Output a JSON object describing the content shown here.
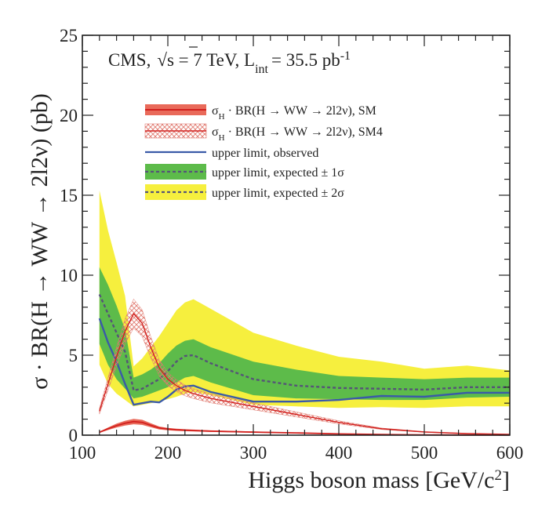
{
  "chart_data": {
    "type": "line",
    "title": "",
    "annotation": "CMS, √s = 7 TeV, L_int = 35.5 pb⁻¹",
    "annotation_parts": {
      "experiment": "CMS,",
      "sqrt": "√",
      "energy": "s = 7 TeV, L",
      "lumi_sub": "int",
      "lumi_val": "= 35.5 pb",
      "lumi_sup": "-1"
    },
    "xlabel": "Higgs boson mass [GeV/c²]",
    "xlabel_parts": {
      "main": "Higgs boson mass [GeV/c",
      "sup": "2",
      "close": "]"
    },
    "ylabel": "σ · BR(H → WW → 2l2ν) (pb)",
    "xlim": [
      100,
      600
    ],
    "ylim": [
      0,
      25
    ],
    "x_ticks": [
      100,
      200,
      300,
      400,
      500,
      600
    ],
    "y_ticks": [
      0,
      5,
      10,
      15,
      20,
      25
    ],
    "legend": [
      {
        "key": "sm",
        "label": "σ_H · BR(H → WW → 2l2ν), SM",
        "parts": {
          "a": "σ",
          "sub": "H",
          "b": " · BR(H → WW → 2l2ν), SM"
        }
      },
      {
        "key": "sm4",
        "label": "σ_H · BR(H → WW → 2l2ν), SM4",
        "parts": {
          "a": "σ",
          "sub": "H",
          "b": " · BR(H → WW → 2l2ν), SM4"
        }
      },
      {
        "key": "obs",
        "label": "upper limit, observed"
      },
      {
        "key": "exp1",
        "label": "upper limit, expected ± 1σ"
      },
      {
        "key": "exp2",
        "label": "upper limit, expected ± 2σ"
      }
    ],
    "colors": {
      "sm": "#d2201e",
      "sm_band": "#e96a5a",
      "sm4": "#d2201e",
      "sm4_hatch": "#e07a70",
      "observed": "#3a5aa8",
      "expected": "#555577",
      "band1": "#5dbb4a",
      "band2": "#f6ef3e"
    },
    "mass": [
      120,
      130,
      140,
      150,
      160,
      170,
      180,
      190,
      200,
      210,
      220,
      230,
      250,
      300,
      350,
      400,
      450,
      500,
      550,
      600
    ],
    "series": [
      {
        "name": "upper limit, observed",
        "values": [
          7.3,
          5.8,
          4.6,
          3.2,
          1.9,
          2.0,
          2.1,
          2.05,
          2.4,
          2.85,
          3.05,
          3.1,
          2.7,
          2.1,
          2.1,
          2.2,
          2.45,
          2.4,
          2.65,
          2.65
        ]
      },
      {
        "name": "upper limit, expected (median)",
        "values": [
          8.8,
          7.6,
          6.4,
          5.2,
          2.8,
          2.9,
          3.2,
          3.5,
          4.0,
          4.6,
          4.95,
          5.0,
          4.5,
          3.5,
          3.1,
          2.95,
          2.9,
          2.85,
          3.0,
          3.0
        ]
      },
      {
        "name": "expected -1σ",
        "values": [
          5.7,
          4.4,
          3.5,
          2.9,
          2.3,
          2.4,
          2.6,
          2.8,
          3.0,
          3.3,
          3.6,
          3.7,
          3.3,
          2.5,
          2.3,
          2.25,
          2.2,
          2.2,
          2.35,
          2.4
        ]
      },
      {
        "name": "expected +1σ",
        "values": [
          10.5,
          9.4,
          8.1,
          6.6,
          3.6,
          3.8,
          4.1,
          4.5,
          5.1,
          5.6,
          5.9,
          6.0,
          5.5,
          4.6,
          4.1,
          3.7,
          3.6,
          3.5,
          3.6,
          3.6
        ]
      },
      {
        "name": "expected -2σ",
        "values": [
          4.4,
          3.2,
          2.6,
          2.2,
          1.8,
          1.9,
          2.0,
          2.1,
          2.25,
          2.4,
          2.6,
          2.7,
          2.5,
          1.9,
          1.8,
          1.7,
          1.75,
          1.7,
          1.8,
          1.8
        ]
      },
      {
        "name": "expected +2σ",
        "values": [
          15.3,
          12.8,
          10.8,
          8.7,
          4.3,
          4.8,
          5.5,
          6.2,
          7.0,
          7.8,
          8.3,
          8.5,
          7.9,
          6.4,
          5.6,
          4.9,
          4.6,
          4.15,
          4.35,
          4.05
        ]
      },
      {
        "name": "σ_H · BR, SM",
        "values": [
          0.18,
          0.4,
          0.6,
          0.75,
          0.85,
          0.8,
          0.62,
          0.45,
          0.38,
          0.34,
          0.31,
          0.29,
          0.25,
          0.19,
          0.14,
          0.08,
          0.04,
          0.02,
          0.01,
          0.01
        ]
      },
      {
        "name": "σ_H · BR, SM4",
        "values": [
          1.5,
          3.2,
          4.9,
          6.5,
          7.6,
          7.0,
          5.5,
          4.2,
          3.5,
          3.1,
          2.8,
          2.6,
          2.3,
          1.8,
          1.3,
          0.8,
          0.4,
          0.2,
          0.1,
          0.05
        ]
      }
    ]
  }
}
